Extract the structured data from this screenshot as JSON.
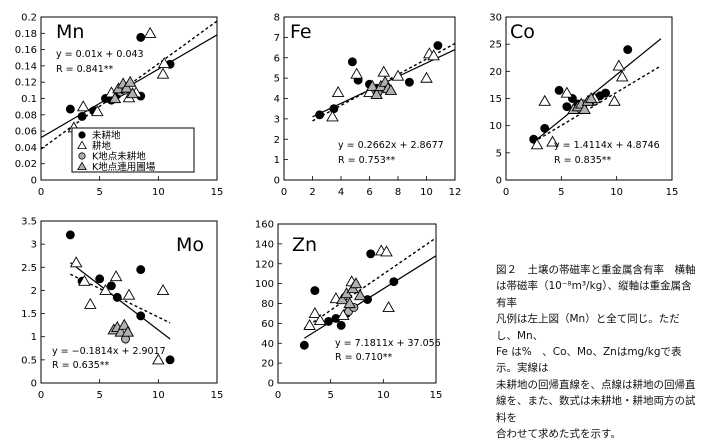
{
  "caption": {
    "lines": [
      "図２　土壌の帯磁率と重金属含有率　横軸",
      "は帯磁率（10⁻⁸m³/kg）、縦軸は重金属含有率",
      "凡例は左上図（Mn）と全て同じ。ただし、Mn、",
      "Fe は%　、Co、Mo、Znはmg/kgで表示。実線は",
      "未耕地の回帰直線を、点線は耕地の回帰直",
      "線を、また、数式は未耕地・耕地両方の試料を",
      "合わせて求めた式を示す。"
    ]
  },
  "legend": {
    "items": [
      {
        "label": "未耕地",
        "marker": "filled-circle"
      },
      {
        "label": "耕地",
        "marker": "open-triangle"
      },
      {
        "label": "K地点未耕地",
        "marker": "gray-circle"
      },
      {
        "label": "K地点連用圃場",
        "marker": "gray-triangle"
      }
    ]
  },
  "colors": {
    "filled": "#000000",
    "gray": "#b0b0b0",
    "open": "#ffffff"
  },
  "chart_data": [
    {
      "type": "scatter",
      "title": "Mn",
      "xlim": [
        0,
        15
      ],
      "ylim": [
        0,
        0.2
      ],
      "xticks": [
        0,
        5,
        10,
        15
      ],
      "yticks": [
        0,
        0.02,
        0.04,
        0.06,
        0.08,
        0.1,
        0.12,
        0.14,
        0.16,
        0.18,
        0.2
      ],
      "ytick_labels": [
        "0",
        "0.02",
        "0.04",
        "0.06",
        "0.08",
        "0.1",
        "0.12",
        "0.14",
        "0.16",
        "0.18",
        "0.2"
      ],
      "equation": "y = 0.01x + 0.043",
      "r_text": "R = 0.841**",
      "solid_line": [
        [
          0,
          0.052
        ],
        [
          15,
          0.178
        ]
      ],
      "dashed_line": [
        [
          0,
          0.038
        ],
        [
          15,
          0.195
        ]
      ],
      "series": [
        {
          "marker": "filled-circle",
          "points": [
            [
              2.5,
              0.087
            ],
            [
              3.5,
              0.078
            ],
            [
              4.5,
              0.085
            ],
            [
              5.5,
              0.1
            ],
            [
              6,
              0.098
            ],
            [
              6.5,
              0.105
            ],
            [
              8.5,
              0.175
            ],
            [
              8.5,
              0.103
            ],
            [
              11,
              0.142
            ]
          ]
        },
        {
          "marker": "open-triangle",
          "points": [
            [
              2.8,
              0.064
            ],
            [
              3.6,
              0.09
            ],
            [
              4.8,
              0.084
            ],
            [
              6,
              0.107
            ],
            [
              7.5,
              0.101
            ],
            [
              8.1,
              0.107
            ],
            [
              9.3,
              0.18
            ],
            [
              10.4,
              0.13
            ],
            [
              10.5,
              0.143
            ]
          ]
        },
        {
          "marker": "gray-circle",
          "points": [
            [
              6.8,
              0.108
            ],
            [
              7.1,
              0.11
            ]
          ]
        },
        {
          "marker": "gray-triangle",
          "points": [
            [
              6.3,
              0.1
            ],
            [
              6.6,
              0.112
            ],
            [
              7,
              0.118
            ],
            [
              7.3,
              0.113
            ],
            [
              7.6,
              0.12
            ],
            [
              7.8,
              0.106
            ]
          ]
        }
      ]
    },
    {
      "type": "scatter",
      "title": "Fe",
      "xlim": [
        0,
        12
      ],
      "ylim": [
        0,
        8
      ],
      "xticks": [
        0,
        2,
        4,
        6,
        8,
        10,
        12
      ],
      "yticks": [
        0,
        1,
        2,
        3,
        4,
        5,
        6,
        7,
        8
      ],
      "ytick_labels": [
        "0",
        "1",
        "2",
        "3",
        "4",
        "5",
        "6",
        "7",
        "8"
      ],
      "equation": "y = 0.2662x + 2.8677",
      "r_text": "R = 0.753**",
      "solid_line": [
        [
          2,
          3.1
        ],
        [
          12,
          6.4
        ]
      ],
      "dashed_line": [
        [
          2,
          2.9
        ],
        [
          12,
          6.7
        ]
      ],
      "series": [
        {
          "marker": "filled-circle",
          "points": [
            [
              2.5,
              3.2
            ],
            [
              3.5,
              3.5
            ],
            [
              4.8,
              5.8
            ],
            [
              5.2,
              4.9
            ],
            [
              6,
              4.7
            ],
            [
              6.5,
              4.5
            ],
            [
              7,
              4.6
            ],
            [
              8.8,
              4.8
            ],
            [
              10.8,
              6.6
            ]
          ]
        },
        {
          "marker": "open-triangle",
          "points": [
            [
              3.4,
              3.1
            ],
            [
              3.8,
              4.3
            ],
            [
              5.1,
              5.2
            ],
            [
              6,
              4.3
            ],
            [
              7,
              5.3
            ],
            [
              8,
              5.1
            ],
            [
              10,
              5
            ],
            [
              10.2,
              6.2
            ],
            [
              10.5,
              6.1
            ]
          ]
        },
        {
          "marker": "gray-circle",
          "points": [
            [
              6.6,
              4.3
            ],
            [
              7,
              4.5
            ]
          ]
        },
        {
          "marker": "gray-triangle",
          "points": [
            [
              6.2,
              4.6
            ],
            [
              6.5,
              4.2
            ],
            [
              6.8,
              4.6
            ],
            [
              7.1,
              4.8
            ],
            [
              7.3,
              4.5
            ],
            [
              7.5,
              4.4
            ]
          ]
        }
      ]
    },
    {
      "type": "scatter",
      "title": "Co",
      "xlim": [
        0,
        15
      ],
      "ylim": [
        0,
        30
      ],
      "xticks": [
        0,
        5,
        10,
        15
      ],
      "yticks": [
        0,
        5,
        10,
        15,
        20,
        25,
        30
      ],
      "ytick_labels": [
        "0",
        "5",
        "10",
        "15",
        "20",
        "25",
        "30"
      ],
      "equation": "y = 1.4114x + 4.8746",
      "r_text": "R = 0.835**",
      "solid_line": [
        [
          2.5,
          7
        ],
        [
          14,
          26
        ]
      ],
      "dashed_line": [
        [
          2.5,
          7
        ],
        [
          14,
          21
        ]
      ],
      "series": [
        {
          "marker": "filled-circle",
          "points": [
            [
              2.5,
              7.5
            ],
            [
              3.5,
              9.5
            ],
            [
              4.8,
              16.5
            ],
            [
              5.5,
              13.5
            ],
            [
              6,
              15
            ],
            [
              6.5,
              14
            ],
            [
              8.5,
              15.5
            ],
            [
              9,
              16
            ],
            [
              11,
              24
            ]
          ]
        },
        {
          "marker": "open-triangle",
          "points": [
            [
              2.8,
              6.5
            ],
            [
              3.5,
              14.5
            ],
            [
              4.2,
              7
            ],
            [
              5.5,
              16
            ],
            [
              7.5,
              14.5
            ],
            [
              8,
              15
            ],
            [
              9.8,
              14.5
            ],
            [
              10.2,
              21
            ],
            [
              10.5,
              19
            ]
          ]
        },
        {
          "marker": "gray-circle",
          "points": [
            [
              6.5,
              13
            ],
            [
              7,
              14
            ]
          ]
        },
        {
          "marker": "gray-triangle",
          "points": [
            [
              6.1,
              13
            ],
            [
              6.5,
              13.5
            ],
            [
              6.8,
              14
            ],
            [
              7.1,
              13
            ],
            [
              7.4,
              14.5
            ],
            [
              7.7,
              15
            ]
          ]
        }
      ]
    },
    {
      "type": "scatter",
      "title": "Mo",
      "xlim": [
        0,
        15
      ],
      "ylim": [
        0,
        3.5
      ],
      "xticks": [
        0,
        5,
        10,
        15
      ],
      "yticks": [
        0,
        0.5,
        1,
        1.5,
        2,
        2.5,
        3,
        3.5
      ],
      "ytick_labels": [
        "0",
        "0.5",
        "1",
        "1.5",
        "2",
        "2.5",
        "3",
        "3.5"
      ],
      "equation": "y = −0.1814x + 2.9017",
      "r_text": "R = 0.635**",
      "solid_line": [
        [
          2.5,
          2.6
        ],
        [
          11,
          0.95
        ]
      ],
      "dashed_line": [
        [
          2.5,
          2.35
        ],
        [
          11,
          1.3
        ]
      ],
      "series": [
        {
          "marker": "filled-circle",
          "points": [
            [
              2.5,
              3.2
            ],
            [
              3.5,
              2.2
            ],
            [
              5,
              2.25
            ],
            [
              6,
              2.1
            ],
            [
              6.5,
              1.85
            ],
            [
              8.5,
              2.45
            ],
            [
              8.5,
              1.45
            ],
            [
              11,
              0.5
            ]
          ]
        },
        {
          "marker": "open-triangle",
          "points": [
            [
              3,
              2.6
            ],
            [
              3.7,
              2.2
            ],
            [
              4.2,
              1.7
            ],
            [
              5.5,
              2
            ],
            [
              6.4,
              2.3
            ],
            [
              7.5,
              1.9
            ],
            [
              10,
              0.5
            ],
            [
              10.4,
              2
            ]
          ]
        },
        {
          "marker": "gray-circle",
          "points": [
            [
              7.2,
              0.95
            ]
          ]
        },
        {
          "marker": "gray-triangle",
          "points": [
            [
              6.2,
              1.15
            ],
            [
              6.5,
              1.2
            ],
            [
              6.8,
              1.1
            ],
            [
              7.1,
              1.25
            ],
            [
              7.4,
              1.1
            ]
          ]
        }
      ]
    },
    {
      "type": "scatter",
      "title": "Zn",
      "xlim": [
        0,
        15
      ],
      "ylim": [
        0,
        160
      ],
      "xticks": [
        0,
        5,
        10,
        15
      ],
      "yticks": [
        0,
        20,
        40,
        60,
        80,
        100,
        120,
        140,
        160
      ],
      "ytick_labels": [
        "0",
        "20",
        "40",
        "60",
        "80",
        "100",
        "120",
        "140",
        "160"
      ],
      "equation": "y = 7.1811x + 37.056",
      "r_text": "R = 0.710**",
      "solid_line": [
        [
          2.5,
          45
        ],
        [
          15,
          128
        ]
      ],
      "dashed_line": [
        [
          2.5,
          55
        ],
        [
          15,
          146
        ]
      ],
      "series": [
        {
          "marker": "filled-circle",
          "points": [
            [
              2.5,
              38
            ],
            [
              3.5,
              93
            ],
            [
              4.8,
              62
            ],
            [
              5.5,
              65
            ],
            [
              6,
              58
            ],
            [
              6.5,
              70
            ],
            [
              8.5,
              84
            ],
            [
              8.8,
              130
            ],
            [
              11,
              102
            ]
          ]
        },
        {
          "marker": "open-triangle",
          "points": [
            [
              3,
              58
            ],
            [
              3.5,
              70
            ],
            [
              4,
              63
            ],
            [
              5.5,
              85
            ],
            [
              6.2,
              68
            ],
            [
              7,
              102
            ],
            [
              9.8,
              133
            ],
            [
              10.3,
              132
            ],
            [
              10.5,
              76
            ]
          ]
        },
        {
          "marker": "gray-circle",
          "points": [
            [
              6.7,
              72
            ],
            [
              7.2,
              76
            ]
          ]
        },
        {
          "marker": "gray-triangle",
          "points": [
            [
              6.1,
              84
            ],
            [
              6.5,
              90
            ],
            [
              6.8,
              80
            ],
            [
              7.1,
              95
            ],
            [
              7.4,
              100
            ],
            [
              7.8,
              88
            ]
          ]
        }
      ]
    }
  ]
}
